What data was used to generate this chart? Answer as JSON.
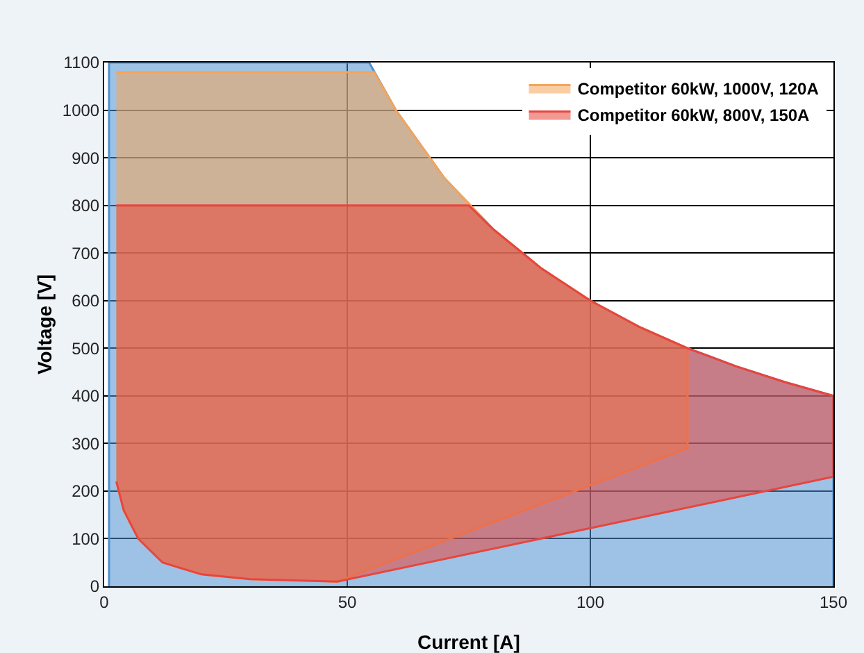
{
  "chart_data": {
    "type": "area",
    "xlabel": "Current [A]",
    "ylabel": "Voltage [V]",
    "xlim": [
      0,
      150
    ],
    "xticks": [
      0,
      50,
      100,
      150
    ],
    "ylim": [
      0,
      1100
    ],
    "yticks": [
      0,
      100,
      200,
      300,
      400,
      500,
      600,
      700,
      800,
      900,
      1000,
      1100
    ],
    "grid": true,
    "legend": "top right",
    "series": [
      {
        "color": "#4f8fcf",
        "x": [
          1,
          1,
          54.5,
          60,
          70,
          80,
          90,
          100,
          110,
          120,
          130,
          140,
          150,
          150
        ],
        "values": [
          0,
          1100,
          1100,
          1000,
          857,
          750,
          667,
          600,
          545,
          500,
          462,
          429,
          400,
          0
        ]
      },
      {
        "name": "Competitor 60kW, 1000V, 120A",
        "color": "#f5a55a",
        "x": [
          2.5,
          55.5,
          60,
          70,
          80,
          90,
          100,
          110,
          120,
          120,
          48,
          30,
          20,
          12,
          7,
          4,
          2.5
        ],
        "values": [
          1080,
          1080,
          1000,
          857,
          750,
          667,
          600,
          545,
          500,
          290,
          10,
          15,
          25,
          50,
          100,
          160,
          220
        ]
      },
      {
        "name": "Competitor 60kW, 800V, 150A",
        "color": "#e8453c",
        "x": [
          2.5,
          75,
          80,
          90,
          100,
          110,
          120,
          130,
          140,
          150,
          150,
          48,
          30,
          20,
          12,
          7,
          4,
          2.5
        ],
        "values": [
          800,
          800,
          750,
          667,
          600,
          545,
          500,
          462,
          429,
          400,
          230,
          10,
          15,
          25,
          50,
          100,
          160,
          220
        ]
      }
    ]
  }
}
